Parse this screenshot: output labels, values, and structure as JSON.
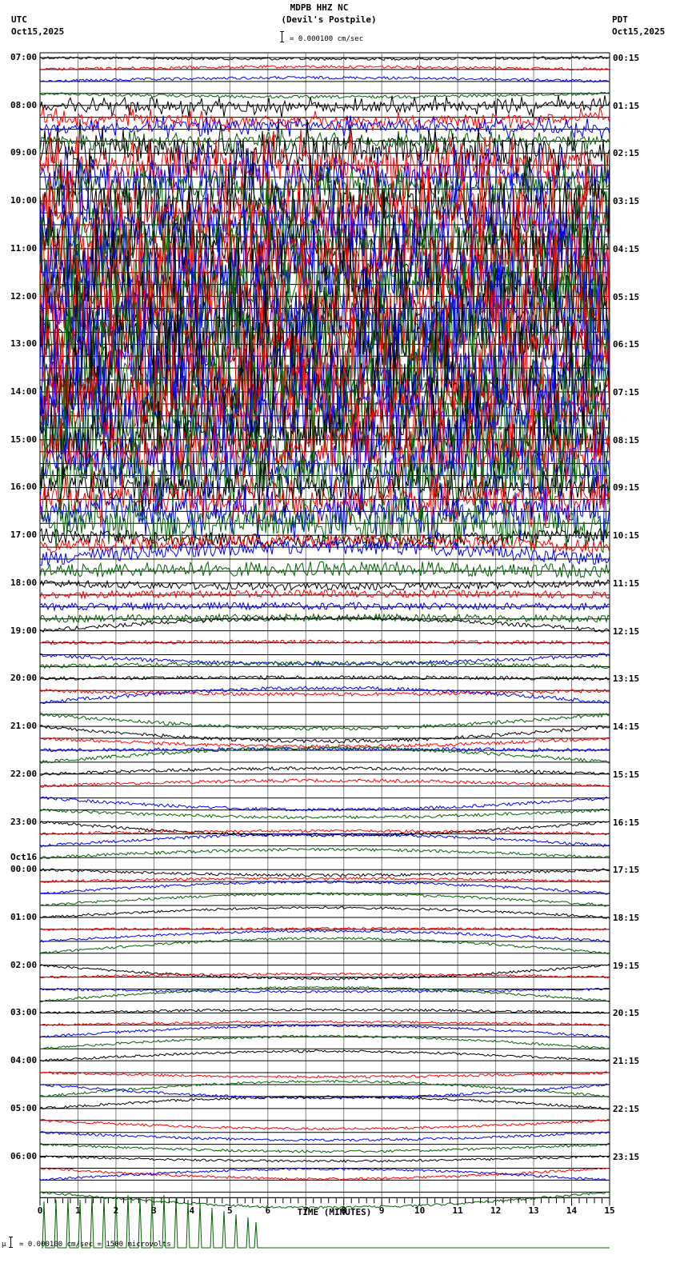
{
  "header": {
    "station": "MDPB HHZ NC",
    "location": "(Devil's Postpile)",
    "left_tz": "UTC",
    "left_date": "Oct15,2025",
    "right_tz": "PDT",
    "right_date": "Oct15,2025",
    "scale_text": "= 0.000100 cm/sec"
  },
  "footer": {
    "scale_text": "= 0.000100 cm/sec =    1500 microvolts",
    "xlabel": "TIME (MINUTES)"
  },
  "colors": {
    "black": "#000000",
    "red": "#ff0000",
    "blue": "#0000ff",
    "green": "#006400",
    "grid": "#808080"
  },
  "chart_data": {
    "type": "line",
    "title": "MDPB HHZ NC (Devil's Postpile)",
    "subtitle": "= 0.000100 cm/sec",
    "xlabel": "TIME (MINUTES)",
    "ylabel": "",
    "xlim": [
      0,
      15
    ],
    "x_ticks": [
      0,
      1,
      2,
      3,
      4,
      5,
      6,
      7,
      8,
      9,
      10,
      11,
      12,
      13,
      14,
      15
    ],
    "minor_tick_step": 0.2,
    "grid": true,
    "trace_colors_cycle": [
      "black",
      "red",
      "blue",
      "green"
    ],
    "traces_per_hour": 4,
    "left_labels": [
      {
        "row": 0,
        "text": "07:00"
      },
      {
        "row": 4,
        "text": "08:00"
      },
      {
        "row": 8,
        "text": "09:00"
      },
      {
        "row": 12,
        "text": "10:00"
      },
      {
        "row": 16,
        "text": "11:00"
      },
      {
        "row": 20,
        "text": "12:00"
      },
      {
        "row": 24,
        "text": "13:00"
      },
      {
        "row": 28,
        "text": "14:00"
      },
      {
        "row": 32,
        "text": "15:00"
      },
      {
        "row": 36,
        "text": "16:00"
      },
      {
        "row": 40,
        "text": "17:00"
      },
      {
        "row": 44,
        "text": "18:00"
      },
      {
        "row": 48,
        "text": "19:00"
      },
      {
        "row": 52,
        "text": "20:00"
      },
      {
        "row": 56,
        "text": "21:00"
      },
      {
        "row": 60,
        "text": "22:00"
      },
      {
        "row": 64,
        "text": "23:00"
      },
      {
        "row": 68,
        "text": "00:00",
        "date": "Oct16"
      },
      {
        "row": 72,
        "text": "01:00"
      },
      {
        "row": 76,
        "text": "02:00"
      },
      {
        "row": 80,
        "text": "03:00"
      },
      {
        "row": 84,
        "text": "04:00"
      },
      {
        "row": 88,
        "text": "05:00"
      },
      {
        "row": 92,
        "text": "06:00"
      }
    ],
    "right_labels": [
      "00:15",
      "01:15",
      "02:15",
      "03:15",
      "04:15",
      "05:15",
      "06:15",
      "07:15",
      "08:15",
      "09:15",
      "10:15",
      "11:15",
      "12:15",
      "13:15",
      "14:15",
      "15:15",
      "16:15",
      "17:15",
      "18:15",
      "19:15",
      "20:15",
      "21:15",
      "22:15",
      "23:15"
    ],
    "rows_total": 96,
    "amplitude_profile_by_hour": [
      1.2,
      4,
      12,
      18,
      22,
      24,
      24,
      22,
      16,
      10,
      6,
      3,
      1.6,
      1.5,
      1.4,
      1.3,
      1.2,
      1.1,
      1.0,
      1.0,
      1.0,
      1.0,
      1.0,
      1.0
    ],
    "annotations": [
      "Oct16"
    ]
  }
}
